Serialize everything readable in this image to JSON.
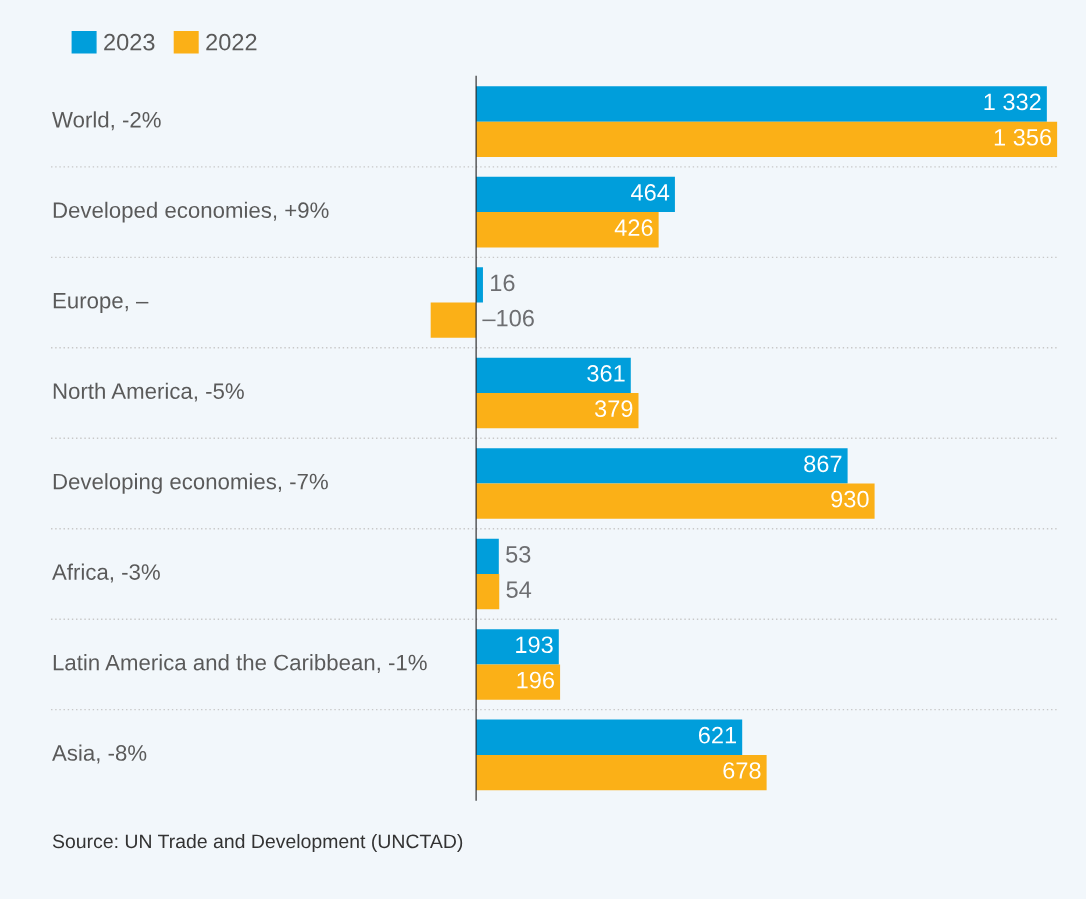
{
  "chart_data": {
    "type": "bar",
    "orientation": "horizontal",
    "categories": [
      "World, -2%",
      "Developed economies, +9%",
      "Europe, –",
      "North America, -5%",
      "Developing economies, -7%",
      "Africa, -3%",
      "Latin America and the Caribbean, -1%",
      "Asia, -8%"
    ],
    "series": [
      {
        "name": "2023",
        "color": "#009edb",
        "values": [
          1332,
          464,
          16,
          361,
          867,
          53,
          193,
          621
        ],
        "value_labels": [
          "1 332",
          "464",
          "16",
          "361",
          "867",
          "53",
          "193",
          "621"
        ]
      },
      {
        "name": "2022",
        "color": "#fbb017",
        "values": [
          1356,
          426,
          -106,
          379,
          930,
          54,
          196,
          678
        ],
        "value_labels": [
          "1 356",
          "426",
          "–106",
          "379",
          "930",
          "54",
          "196",
          "678"
        ]
      }
    ],
    "xlim": [
      -110,
      1360
    ],
    "tick_labels": "y",
    "legend": "top left",
    "annotations": [
      "Source: UN Trade and Development (UNCTAD)"
    ]
  }
}
